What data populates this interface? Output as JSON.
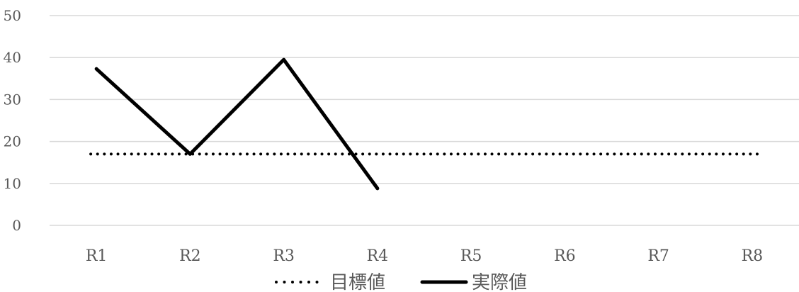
{
  "chart_data": {
    "type": "line",
    "title": "",
    "xlabel": "",
    "ylabel": "",
    "categories": [
      "R1",
      "R2",
      "R3",
      "R4",
      "R5",
      "R6",
      "R7",
      "R8"
    ],
    "ylim": [
      0,
      50
    ],
    "yticks": [
      "0",
      "10",
      "20",
      "30",
      "40",
      "50"
    ],
    "grid": true,
    "legend_position": "bottom",
    "series": [
      {
        "name": "目標値",
        "style": "dotted",
        "color": "#000000",
        "values": [
          17,
          17,
          17,
          17,
          17,
          17,
          17,
          17
        ]
      },
      {
        "name": "実際値",
        "style": "solid",
        "color": "#000000",
        "values": [
          37.3,
          17,
          39.5,
          8.8,
          null,
          null,
          null,
          null
        ]
      }
    ]
  }
}
